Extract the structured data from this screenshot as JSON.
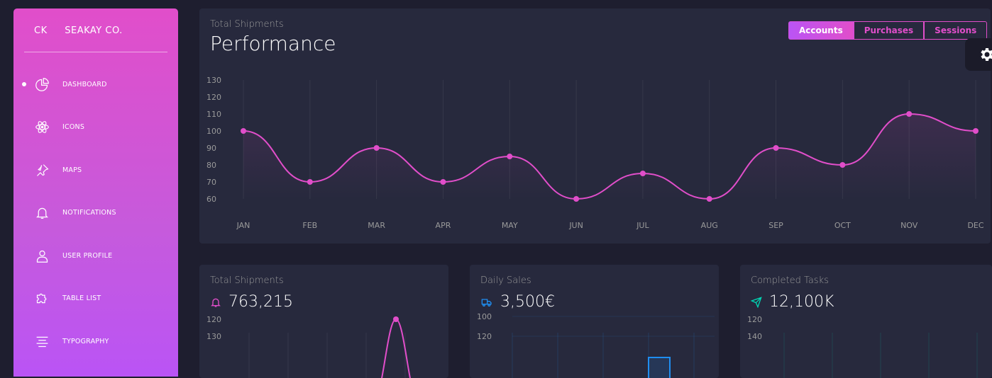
{
  "sidebar": {
    "brand_mini": "CK",
    "brand_name": "SEAKAY CO.",
    "items": [
      {
        "label": "DASHBOARD",
        "icon": "chart-pie-icon",
        "active": true
      },
      {
        "label": "ICONS",
        "icon": "atom-icon"
      },
      {
        "label": "MAPS",
        "icon": "pin-icon"
      },
      {
        "label": "NOTIFICATIONS",
        "icon": "bell-icon"
      },
      {
        "label": "USER PROFILE",
        "icon": "user-icon"
      },
      {
        "label": "TABLE LIST",
        "icon": "puzzle-icon"
      },
      {
        "label": "TYPOGRAPHY",
        "icon": "align-center-icon"
      }
    ]
  },
  "main_card": {
    "subtitle": "Total Shipments",
    "title": "Performance",
    "buttons": [
      "Accounts",
      "Purchases",
      "Sessions"
    ],
    "active_button": "Accounts"
  },
  "small_cards": [
    {
      "subtitle": "Total Shipments",
      "value": "763,215",
      "icon": "bell-icon",
      "icon_color": "#e14eca"
    },
    {
      "subtitle": "Daily Sales",
      "value": "3,500€",
      "icon": "delivery-icon",
      "icon_color": "#1f8ef1"
    },
    {
      "subtitle": "Completed Tasks",
      "value": "12,100K",
      "icon": "send-icon",
      "icon_color": "#00d6b4"
    }
  ],
  "colors": {
    "accent": "#e14eca",
    "card_bg": "#27293d",
    "page_bg": "#1e1e2f",
    "blue": "#1f8ef1",
    "teal": "#00d6b4"
  },
  "chart_data": [
    {
      "type": "line",
      "categories": [
        "JAN",
        "FEB",
        "MAR",
        "APR",
        "MAY",
        "JUN",
        "JUL",
        "AUG",
        "SEP",
        "OCT",
        "NOV",
        "DEC"
      ],
      "values": [
        100,
        70,
        90,
        70,
        85,
        60,
        75,
        60,
        90,
        80,
        110,
        100
      ],
      "yticks": [
        60,
        70,
        80,
        90,
        100,
        110,
        120,
        130
      ],
      "ylim": [
        60,
        130
      ],
      "grid": "vertical",
      "color": "#e14eca"
    },
    {
      "type": "line",
      "yticks": [
        120,
        130
      ],
      "visible_point_value": 120,
      "color": "#e14eca"
    },
    {
      "type": "bar",
      "yticks": [
        100,
        120
      ],
      "color": "#1f8ef1"
    },
    {
      "type": "line",
      "yticks": [
        120,
        140
      ],
      "color": "#00d6b4"
    }
  ]
}
